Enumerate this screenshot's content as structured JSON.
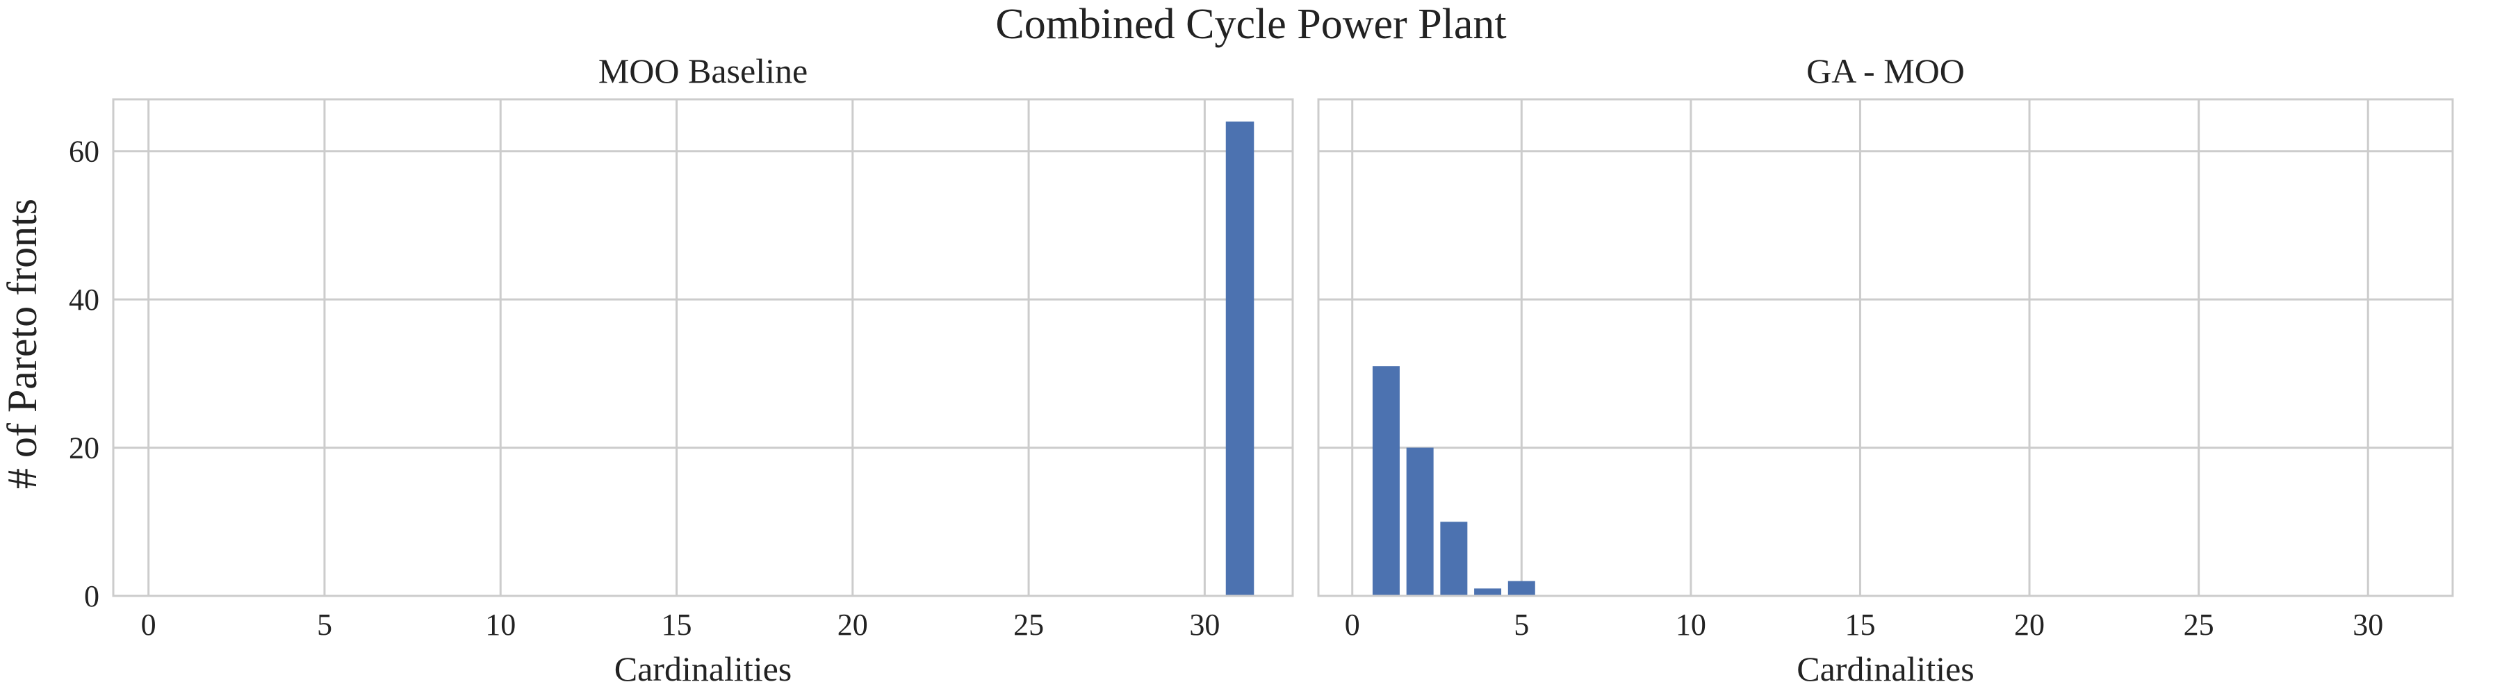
{
  "figure": {
    "title": "Combined Cycle Power Plant",
    "ylabel": "# of Pareto fronts"
  },
  "colors": {
    "bar": "#4C72B0",
    "grid": "#cccccc",
    "background": "#ffffff"
  },
  "chart_data": [
    {
      "type": "bar",
      "title": "MOO Baseline",
      "xlabel": "Cardinalities",
      "ylabel": "# of Pareto fronts",
      "xlim": [
        -1,
        32.5
      ],
      "ylim": [
        0,
        67
      ],
      "xticks": [
        0,
        5,
        10,
        15,
        20,
        25,
        30
      ],
      "yticks": [
        0,
        20,
        40,
        60
      ],
      "show_yticklabels": true,
      "grid": true,
      "x": [
        31
      ],
      "values": [
        64
      ]
    },
    {
      "type": "bar",
      "title": "GA - MOO",
      "xlabel": "Cardinalities",
      "ylabel": "",
      "xlim": [
        -1,
        32.5
      ],
      "ylim": [
        0,
        67
      ],
      "xticks": [
        0,
        5,
        10,
        15,
        20,
        25,
        30
      ],
      "yticks": [
        0,
        20,
        40,
        60
      ],
      "show_yticklabels": false,
      "grid": true,
      "x": [
        1,
        2,
        3,
        4,
        5
      ],
      "values": [
        31,
        20,
        10,
        1,
        2
      ]
    }
  ]
}
